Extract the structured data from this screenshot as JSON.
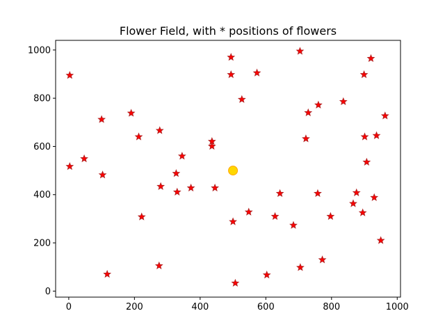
{
  "chart_data": {
    "type": "scatter",
    "title": "Flower Field, with * positions of flowers",
    "xlabel": "",
    "ylabel": "",
    "xlim": [
      -40,
      1010
    ],
    "ylim": [
      -25,
      1040
    ],
    "xticks": [
      0,
      200,
      400,
      600,
      800,
      1000
    ],
    "yticks": [
      0,
      200,
      400,
      600,
      800,
      1000
    ],
    "grid": false,
    "series": [
      {
        "marker": "star",
        "color": "#ff0000",
        "edge_color": "#b22222",
        "points": [
          {
            "x": 3,
            "y": 895
          },
          {
            "x": 3,
            "y": 517
          },
          {
            "x": 47,
            "y": 549
          },
          {
            "x": 100,
            "y": 712
          },
          {
            "x": 103,
            "y": 482
          },
          {
            "x": 117,
            "y": 70
          },
          {
            "x": 190,
            "y": 738
          },
          {
            "x": 213,
            "y": 640
          },
          {
            "x": 222,
            "y": 308
          },
          {
            "x": 275,
            "y": 105
          },
          {
            "x": 277,
            "y": 666
          },
          {
            "x": 280,
            "y": 434
          },
          {
            "x": 327,
            "y": 488
          },
          {
            "x": 330,
            "y": 411
          },
          {
            "x": 345,
            "y": 560
          },
          {
            "x": 372,
            "y": 428
          },
          {
            "x": 436,
            "y": 621
          },
          {
            "x": 436,
            "y": 601
          },
          {
            "x": 445,
            "y": 428
          },
          {
            "x": 494,
            "y": 970
          },
          {
            "x": 494,
            "y": 898
          },
          {
            "x": 500,
            "y": 288
          },
          {
            "x": 507,
            "y": 33
          },
          {
            "x": 527,
            "y": 795
          },
          {
            "x": 548,
            "y": 328
          },
          {
            "x": 573,
            "y": 905
          },
          {
            "x": 603,
            "y": 67
          },
          {
            "x": 628,
            "y": 310
          },
          {
            "x": 643,
            "y": 405
          },
          {
            "x": 684,
            "y": 273
          },
          {
            "x": 704,
            "y": 995
          },
          {
            "x": 705,
            "y": 98
          },
          {
            "x": 722,
            "y": 632
          },
          {
            "x": 729,
            "y": 740
          },
          {
            "x": 758,
            "y": 405
          },
          {
            "x": 760,
            "y": 772
          },
          {
            "x": 772,
            "y": 130
          },
          {
            "x": 797,
            "y": 310
          },
          {
            "x": 836,
            "y": 786
          },
          {
            "x": 866,
            "y": 363
          },
          {
            "x": 876,
            "y": 408
          },
          {
            "x": 895,
            "y": 325
          },
          {
            "x": 899,
            "y": 898
          },
          {
            "x": 901,
            "y": 640
          },
          {
            "x": 907,
            "y": 535
          },
          {
            "x": 920,
            "y": 965
          },
          {
            "x": 930,
            "y": 388
          },
          {
            "x": 937,
            "y": 645
          },
          {
            "x": 950,
            "y": 210
          },
          {
            "x": 963,
            "y": 727
          }
        ]
      },
      {
        "marker": "circle",
        "color": "#ffd700",
        "edge_color": "#ffa500",
        "points": [
          {
            "x": 500,
            "y": 500
          }
        ]
      }
    ]
  }
}
